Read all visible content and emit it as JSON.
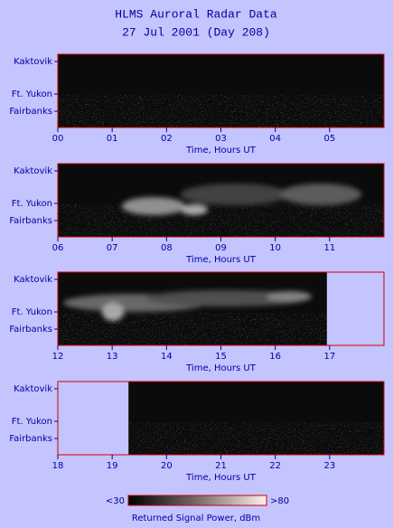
{
  "title": "HLMS Auroral Radar Data",
  "subtitle": "27 Jul 2001 (Day 208)",
  "sites": [
    "Kaktovik",
    "Ft. Yukon",
    "Fairbanks"
  ],
  "chart_data": [
    {
      "type": "heatmap",
      "xlabel": "Time, Hours UT",
      "xlim": [
        0,
        6
      ],
      "data_range": [
        0,
        6
      ],
      "xticks": [
        {
          "value": 0,
          "label": "00"
        },
        {
          "value": 1,
          "label": "01"
        },
        {
          "value": 2,
          "label": "02"
        },
        {
          "value": 3,
          "label": "03"
        },
        {
          "value": 4,
          "label": "04"
        },
        {
          "value": 5,
          "label": "05"
        }
      ]
    },
    {
      "type": "heatmap",
      "xlabel": "Time, Hours UT",
      "xlim": [
        6,
        12
      ],
      "data_range": [
        6,
        12
      ],
      "xticks": [
        {
          "value": 6,
          "label": "06"
        },
        {
          "value": 7,
          "label": "07"
        },
        {
          "value": 8,
          "label": "08"
        },
        {
          "value": 9,
          "label": "09"
        },
        10,
        11
      ]
    },
    {
      "type": "heatmap",
      "xlabel": "Time, Hours UT",
      "xlim": [
        12,
        18
      ],
      "data_range": [
        12,
        16.95
      ],
      "xticks": [
        12,
        13,
        14,
        15,
        16,
        17
      ]
    },
    {
      "type": "heatmap",
      "xlabel": "Time, Hours UT",
      "xlim": [
        18,
        24
      ],
      "data_range": [
        19.3,
        24
      ],
      "xticks": [
        18,
        19,
        20,
        21,
        22,
        23
      ]
    }
  ],
  "colorbar": {
    "label": "Returned Signal Power, dBm",
    "min": {
      "value": 30,
      "label": "<30"
    },
    "max": {
      "value": 80,
      "label": ">80"
    }
  }
}
